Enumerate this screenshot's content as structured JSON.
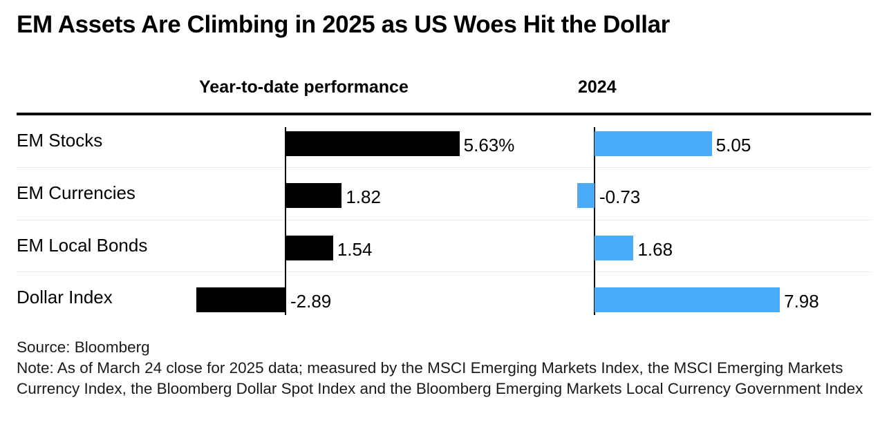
{
  "title": "EM Assets Are Climbing in 2025 as US Woes Hit the Dollar",
  "footer": {
    "source": "Source: Bloomberg",
    "note": "Note: As of March 24 close for 2025 data; measured by the MSCI Emerging Markets Index, the MSCI Emerging Markets Currency Index, the Bloomberg Dollar Spot Index and the Bloomberg Emerging Markets Local Currency Government Index"
  },
  "colors": {
    "ytd_bar": "#000000",
    "bar_2024": "#4aacf9"
  },
  "chart_data": {
    "type": "bar",
    "orientation": "horizontal",
    "categories": [
      "EM Stocks",
      "EM Currencies",
      "EM Local Bonds",
      "Dollar Index"
    ],
    "series": [
      {
        "name": "Year-to-date performance",
        "values": [
          5.63,
          1.82,
          1.54,
          -2.89
        ],
        "labels": [
          "5.63%",
          "1.82",
          "1.54",
          "-2.89"
        ]
      },
      {
        "name": "2024",
        "values": [
          5.05,
          -0.73,
          1.68,
          7.98
        ],
        "labels": [
          "5.05",
          "-0.73",
          "1.68",
          "7.98"
        ]
      }
    ],
    "grid": false,
    "legend": "none"
  }
}
